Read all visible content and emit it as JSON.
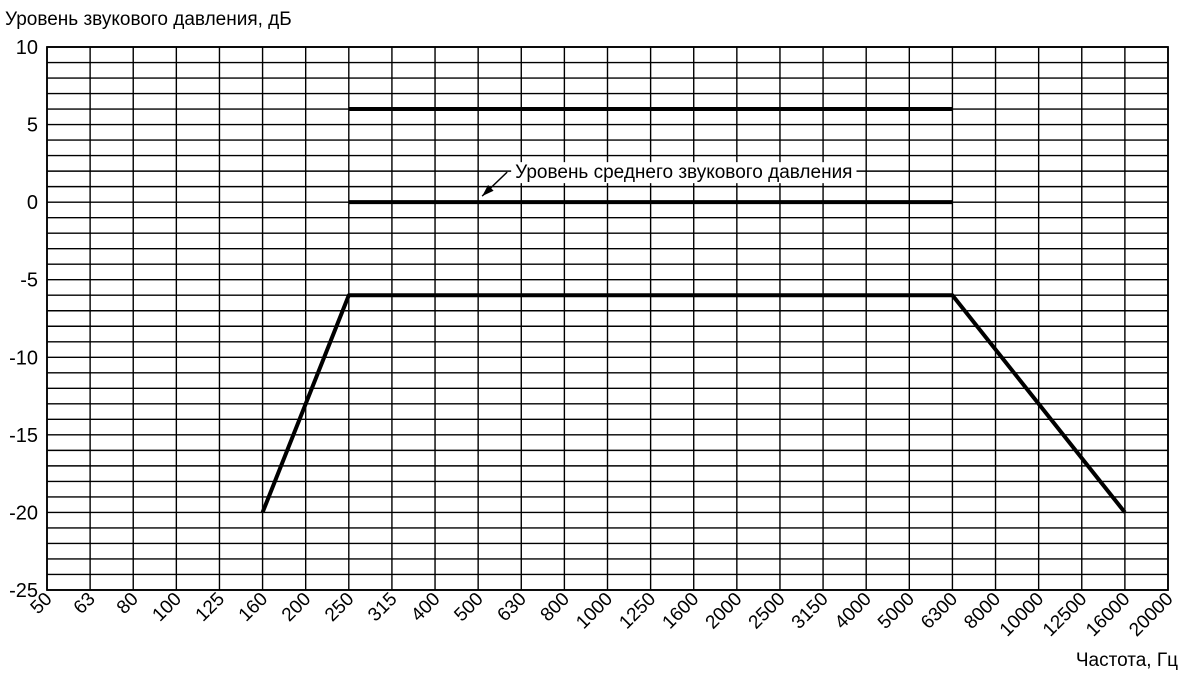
{
  "chart_data": {
    "type": "line",
    "ylabel": "Уровень звукового давления, дБ",
    "xlabel": "Частота, Гц",
    "x_categories": [
      "50",
      "63",
      "80",
      "100",
      "125",
      "160",
      "200",
      "250",
      "315",
      "400",
      "500",
      "630",
      "800",
      "1000",
      "1250",
      "1600",
      "2000",
      "2500",
      "3150",
      "4000",
      "5000",
      "6300",
      "8000",
      "10000",
      "12500",
      "16000",
      "20000"
    ],
    "y_ticks": [
      10,
      5,
      0,
      -5,
      -10,
      -15,
      -20,
      -25
    ],
    "ylim": [
      -25,
      10
    ],
    "grid": true,
    "series": [
      {
        "x": [
          "250",
          "6300"
        ],
        "y": [
          6,
          6
        ]
      },
      {
        "x": [
          "250",
          "6300"
        ],
        "y": [
          0,
          0
        ]
      },
      {
        "x": [
          "160",
          "250",
          "6300",
          "16000"
        ],
        "y": [
          -20,
          -6,
          -6,
          -20
        ]
      }
    ],
    "annotations": [
      {
        "text": "Уровень среднего звукового давления",
        "points_to": {
          "x": "500",
          "y": 0
        }
      }
    ]
  }
}
